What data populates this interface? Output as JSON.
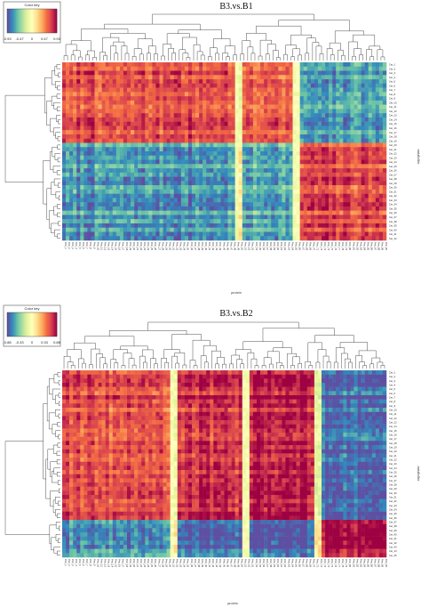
{
  "chart_data": [
    {
      "type": "heatmap",
      "title": "B3.vs.B1",
      "xlabel": "protein",
      "ylabel": "metabolite",
      "colorbar": {
        "title": "Color key",
        "ticks": [
          "-0.93",
          "-0.47",
          "0",
          "0.47",
          "0.93"
        ],
        "range": [
          -0.93,
          0.93
        ],
        "palette": [
          "#5e4fa2",
          "#3288bd",
          "#66c2a5",
          "#abdda4",
          "#e6f598",
          "#ffffbf",
          "#fee08b",
          "#fdae61",
          "#f46d43",
          "#d53e4f",
          "#9e0142"
        ]
      },
      "rows": 42,
      "cols": 90,
      "row_groups": [
        {
          "size": 19,
          "pattern": "A"
        },
        {
          "size": 23,
          "pattern": "B"
        }
      ],
      "col_groups": [
        {
          "size": 48,
          "effect": -1
        },
        {
          "size": 2,
          "effect": 0
        },
        {
          "size": 14,
          "effect": -0.9
        },
        {
          "size": 2,
          "effect": 0
        },
        {
          "size": 24,
          "effect": 1
        }
      ],
      "row_labels": [
        "Cer_1",
        "Cer_2",
        "Cer_3",
        "Cer_4",
        "Cer_5",
        "Cer_6",
        "Cer_7",
        "Cer_8",
        "Cer_9",
        "Cer_10",
        "Cer_11",
        "Cer_12",
        "Cer_13",
        "Cer_14",
        "Cer_15",
        "Cer_16",
        "Cer_17",
        "Cer_18",
        "Cer_19",
        "Cer_20",
        "Cer_21",
        "Cer_22",
        "Cer_23",
        "Cer_24",
        "Cer_25",
        "Cer_26",
        "Cer_27",
        "Cer_28",
        "Cer_29",
        "Cer_30",
        "Cer_31",
        "Cer_32",
        "Cer_33",
        "Cer_34",
        "Cer_35",
        "Cer_36",
        "Cer_37",
        "Cer_38",
        "Cer_39",
        "Cer_40",
        "Cer_41",
        "Cer_42"
      ],
      "col_label_prefix": "Prot_"
    },
    {
      "type": "heatmap",
      "title": "B3.vs.B2",
      "xlabel": "protein",
      "ylabel": "metabolite",
      "colorbar": {
        "title": "Color key",
        "ticks": [
          "-0.88",
          "-0.33",
          "0",
          "0.33",
          "0.88"
        ],
        "range": [
          -0.88,
          0.88
        ],
        "palette": [
          "#5e4fa2",
          "#3288bd",
          "#66c2a5",
          "#abdda4",
          "#e6f598",
          "#ffffbf",
          "#fee08b",
          "#fdae61",
          "#f46d43",
          "#d53e4f",
          "#9e0142"
        ]
      },
      "rows": 45,
      "cols": 90,
      "row_groups": [
        {
          "size": 36,
          "pattern": "A"
        },
        {
          "size": 9,
          "pattern": "B"
        }
      ],
      "col_groups": [
        {
          "size": 30,
          "effect": -1
        },
        {
          "size": 2,
          "effect": 0
        },
        {
          "size": 18,
          "effect": -1.2
        },
        {
          "size": 2,
          "effect": 0
        },
        {
          "size": 18,
          "effect": -1.3
        },
        {
          "size": 2,
          "effect": 0.2
        },
        {
          "size": 18,
          "effect": 1.3
        }
      ],
      "row_labels": [
        "Cer_1",
        "Cer_2",
        "Cer_3",
        "Cer_4",
        "Cer_5",
        "Cer_6",
        "Cer_7",
        "Cer_8",
        "Cer_9",
        "Cer_10",
        "Cer_11",
        "Cer_12",
        "Cer_13",
        "Cer_14",
        "Cer_15",
        "Cer_16",
        "Cer_17",
        "Cer_18",
        "Cer_19",
        "Cer_20",
        "Cer_21",
        "Cer_22",
        "Cer_23",
        "Cer_24",
        "Cer_25",
        "Cer_26",
        "Cer_27",
        "Cer_28",
        "Cer_29",
        "Cer_30",
        "Cer_31",
        "Cer_32",
        "Cer_33",
        "Cer_34",
        "Cer_35",
        "Cer_36",
        "Cer_37",
        "Cer_38",
        "Cer_39",
        "Cer_40",
        "Cer_41",
        "Cer_42",
        "Cer_43",
        "Cer_44",
        "Cer_45"
      ],
      "col_label_prefix": "Prot_"
    }
  ]
}
